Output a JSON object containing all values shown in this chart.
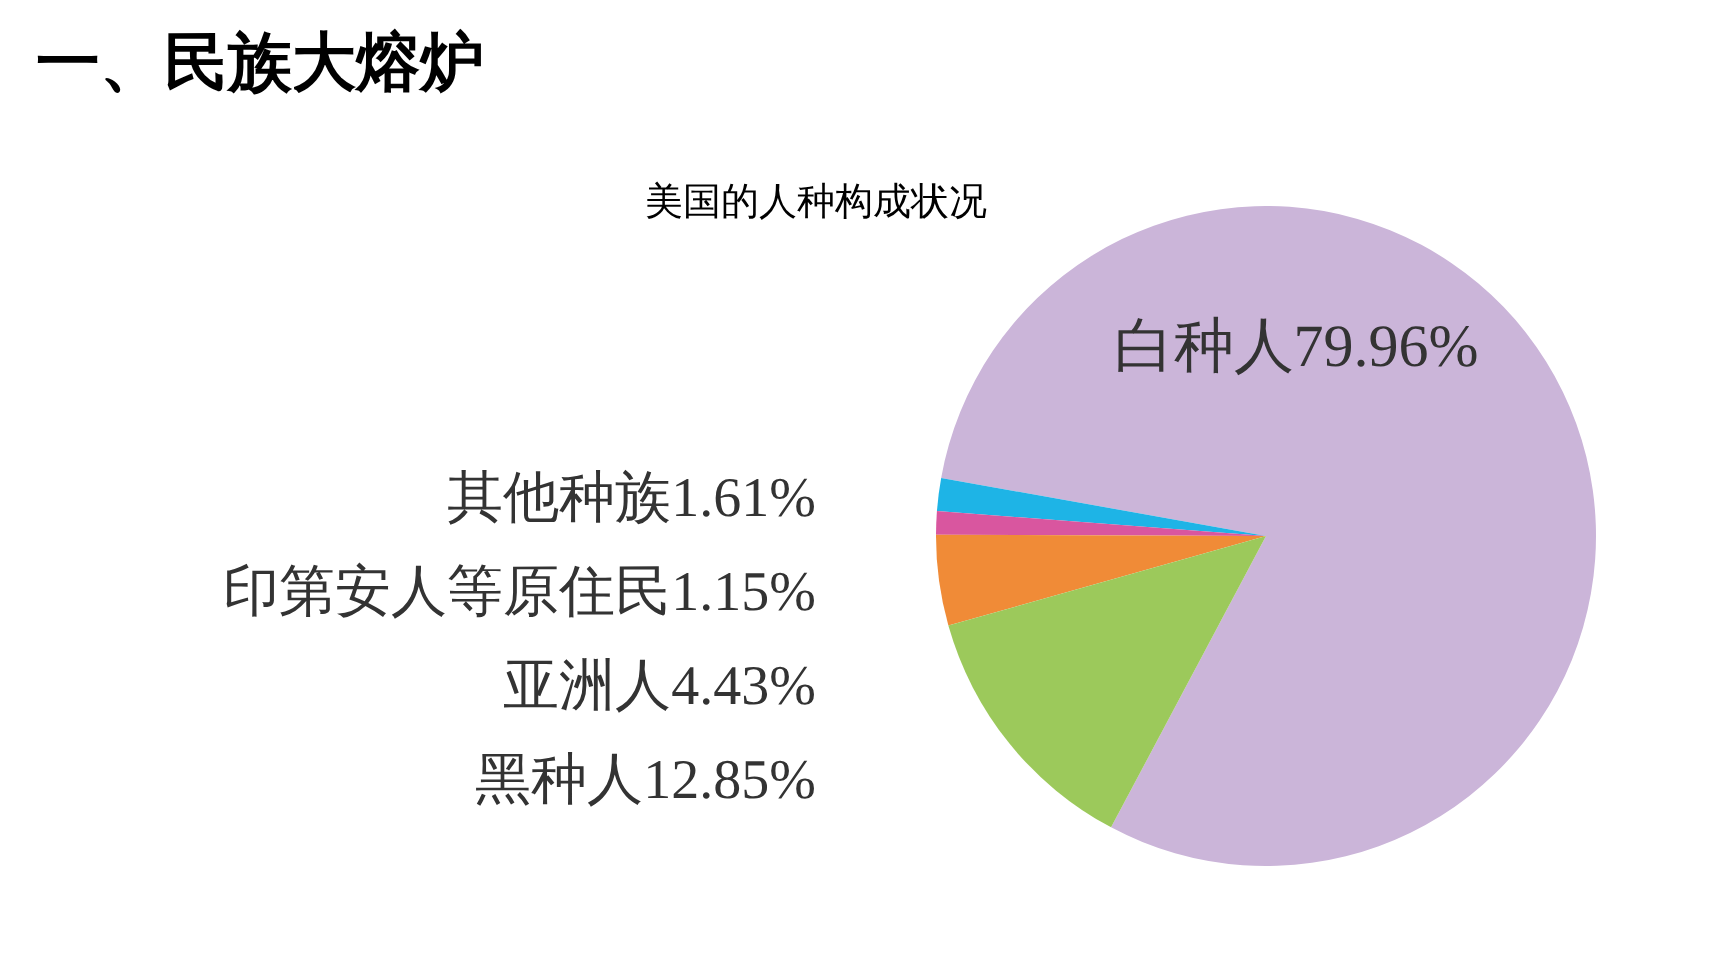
{
  "chart_data": {
    "type": "pie",
    "title": "一、民族大熔炉",
    "subtitle": "美国的人种构成状况",
    "categories": [
      "白种人",
      "其他种族",
      "印第安人等原住民",
      "亚洲人",
      "黑种人"
    ],
    "values": [
      79.96,
      1.61,
      1.15,
      4.43,
      12.85
    ],
    "value_labels": [
      "79.96%",
      "1.61%",
      "1.15%",
      "4.43%",
      "12.85%"
    ],
    "colors": [
      "#cbb5d9",
      "#1eb4e6",
      "#d9569f",
      "#f08b37",
      "#9cc95b"
    ],
    "legend": false
  }
}
